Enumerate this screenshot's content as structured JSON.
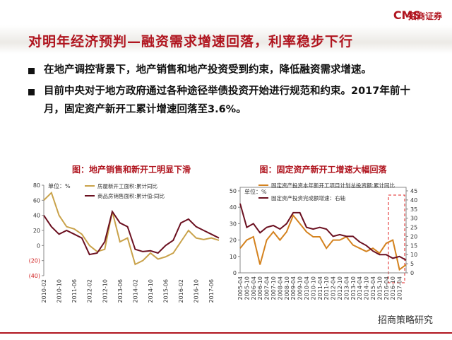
{
  "header": {
    "title": "对明年经济预判—融资需求增速回落，利率稳步下行",
    "logo_cms": "CMS",
    "logo_name": "招商证券"
  },
  "bullets": [
    "在地产调控背景下，地产销售和地产投资受到约束，降低融资需求增速。",
    "目前中央对于地方政府通过各种途径举债投资开始进行规范和约束。2017年前十月，固定资产新开工累计增速回落至3.6%。"
  ],
  "watermark": "招商策略研究",
  "chart_data": [
    {
      "type": "line",
      "title": "图：地产销售和新开工明显下滑",
      "unit_label": "单位：%",
      "categories": [
        "2010-02",
        null,
        "2010-10",
        null,
        "2011-06",
        null,
        "2012-02",
        null,
        "2012-10",
        null,
        "2013-06",
        null,
        "2014-02",
        null,
        "2014-10",
        null,
        "2015-06",
        null,
        "2016-02",
        null,
        "2016-10",
        null,
        "2017-06",
        null
      ],
      "series": [
        {
          "name": "房屋新开工面积:累计同比",
          "color": "#c9a24a",
          "values": [
            60,
            70,
            40,
            25,
            22,
            15,
            0,
            -8,
            -5,
            45,
            5,
            10,
            -25,
            -20,
            -10,
            -18,
            -15,
            -10,
            5,
            20,
            10,
            8,
            10,
            7
          ]
        },
        {
          "name": "商品房销售面积:累计值:同比",
          "color": "#6b1020",
          "values": [
            40,
            25,
            15,
            20,
            15,
            10,
            -12,
            -10,
            5,
            45,
            30,
            25,
            -5,
            -8,
            -7,
            -10,
            0,
            7,
            30,
            35,
            25,
            20,
            15,
            10
          ]
        }
      ],
      "ylim": [
        -40,
        80
      ],
      "yticks": [
        {
          "value": -40,
          "label": "(40)"
        },
        {
          "value": -20,
          "label": "(20)"
        },
        0,
        20,
        40,
        60,
        80
      ]
    },
    {
      "type": "line",
      "title": "图：固定资产新开工增速大幅回落",
      "unit_label": "单位：%",
      "categories": [
        "2005-04",
        "2005-10",
        "2006-04",
        "2006-10",
        "2007-04",
        "2007-10",
        "2008-04",
        "2008-10",
        "2009-04",
        "2009-10",
        "2010-04",
        "2010-10",
        "2011-04",
        "2011-10",
        "2012-04",
        "2012-10",
        "2013-04",
        "2013-10",
        "2014-04",
        "2014-10",
        "2015-04",
        "2015-10",
        "2016-04",
        "2016-10",
        "2017-04",
        null
      ],
      "series": [
        {
          "name": "固定资产投资本年新开工项目计划总投资额:累计同比",
          "color": "#d4821e",
          "values": [
            15,
            20,
            22,
            5,
            20,
            25,
            20,
            25,
            35,
            30,
            25,
            22,
            22,
            15,
            20,
            20,
            22,
            17,
            15,
            13,
            15,
            12,
            18,
            20,
            2,
            5
          ]
        },
        {
          "name": "固定资产投资完成额增速：右轴",
          "color": "#6b1020",
          "axis": "y2",
          "values": [
            38,
            25,
            27,
            22,
            25,
            26,
            24,
            27,
            33,
            33,
            25,
            24,
            25,
            24,
            20,
            21,
            20,
            20,
            17,
            15,
            12,
            10,
            10,
            8,
            9,
            7
          ]
        }
      ],
      "ylim": [
        0,
        50
      ],
      "yticks": [
        0,
        10,
        20,
        30,
        40,
        50
      ],
      "y2lim": [
        0,
        45
      ],
      "y2ticks": [
        0,
        5,
        10,
        15,
        20,
        25,
        30,
        35,
        40,
        45
      ]
    }
  ]
}
